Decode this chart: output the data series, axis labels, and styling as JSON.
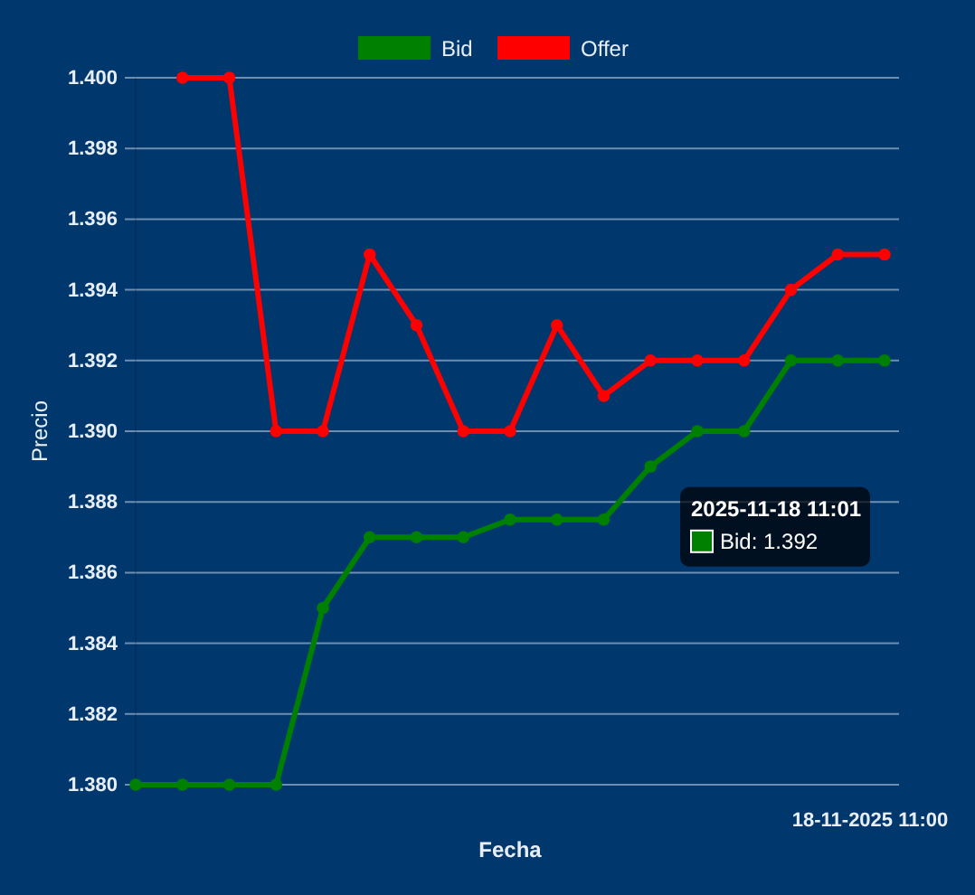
{
  "chart_data": {
    "type": "line",
    "xlabel": "Fecha",
    "ylabel": "Precio",
    "categories": [
      null,
      null,
      null,
      null,
      null,
      null,
      null,
      null,
      null,
      null,
      null,
      null,
      null,
      null,
      null,
      null,
      null
    ],
    "ylim": [
      1.38,
      1.4
    ],
    "yticks": [
      {
        "value": 1.38,
        "label": "1.380"
      },
      {
        "value": 1.382,
        "label": "1.382"
      },
      {
        "value": 1.384,
        "label": "1.384"
      },
      {
        "value": 1.386,
        "label": "1.386"
      },
      {
        "value": 1.388,
        "label": "1.388"
      },
      {
        "value": 1.39,
        "label": "1.390"
      },
      {
        "value": 1.392,
        "label": "1.392"
      },
      {
        "value": 1.394,
        "label": "1.394"
      },
      {
        "value": 1.396,
        "label": "1.396"
      },
      {
        "value": 1.398,
        "label": "1.398"
      },
      {
        "value": 1.4,
        "label": "1.400"
      }
    ],
    "grid": true,
    "legend": "top",
    "marker": "circle",
    "line_style": "solid",
    "series": [
      {
        "name": "Bid",
        "color": "#008000",
        "values": [
          1.38,
          1.38,
          1.38,
          1.38,
          1.385,
          1.387,
          1.387,
          1.387,
          1.3875,
          1.3875,
          1.3875,
          1.389,
          1.39,
          1.39,
          1.392,
          1.392,
          1.392
        ]
      },
      {
        "name": "Offer",
        "color": "#ff0000",
        "values": [
          null,
          1.4,
          1.4,
          1.39,
          1.39,
          1.395,
          1.393,
          1.39,
          1.39,
          1.393,
          1.391,
          1.392,
          1.392,
          1.392,
          1.394,
          1.395,
          1.395
        ]
      }
    ],
    "annotations": [
      "18-11-2025 11:00",
      "2025-11-18 11:01\nBid: 1.392"
    ]
  }
}
